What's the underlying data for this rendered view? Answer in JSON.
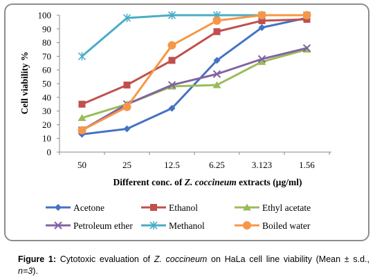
{
  "chart_data": {
    "type": "line",
    "categories": [
      "50",
      "25",
      "12.5",
      "6.25",
      "3.123",
      "1.56"
    ],
    "ylabel": "Cell viability %",
    "xlabel_parts": [
      "Different conc. of ",
      "Z. coccineum",
      " extracts (µg/ml)"
    ],
    "ylim": [
      0,
      100
    ],
    "yticks": [
      0,
      10,
      20,
      30,
      40,
      50,
      60,
      70,
      80,
      90,
      100
    ],
    "grid": false,
    "legend_position": "bottom",
    "series": [
      {
        "name": "Acetone",
        "values": [
          13,
          17,
          32,
          67,
          91,
          98
        ],
        "color": "#4472c4",
        "marker": "diamond"
      },
      {
        "name": "Ethanol",
        "values": [
          35,
          49,
          67,
          88,
          96,
          97
        ],
        "color": "#c0504d",
        "marker": "square"
      },
      {
        "name": "Ethyl acetate",
        "values": [
          25,
          35,
          48,
          49,
          66,
          75
        ],
        "color": "#9bbb59",
        "marker": "triangle"
      },
      {
        "name": "Petroleum ether",
        "values": [
          16,
          35,
          49,
          57,
          68,
          76
        ],
        "color": "#8064a2",
        "marker": "x"
      },
      {
        "name": "Methanol",
        "values": [
          70,
          98,
          100,
          100,
          100,
          100
        ],
        "color": "#4bacc6",
        "marker": "star"
      },
      {
        "name": "Boiled water",
        "values": [
          16,
          33,
          78,
          96,
          100,
          100
        ],
        "color": "#f79646",
        "marker": "circle"
      }
    ]
  },
  "caption": {
    "label": "Figure 1:",
    "text_before": " Cytotoxic evaluation of ",
    "species": "Z. coccineum",
    "text_middle": " on HaLa cell line viability (Mean ± s.d., ",
    "n_label": "n=3",
    "text_after": ")."
  }
}
